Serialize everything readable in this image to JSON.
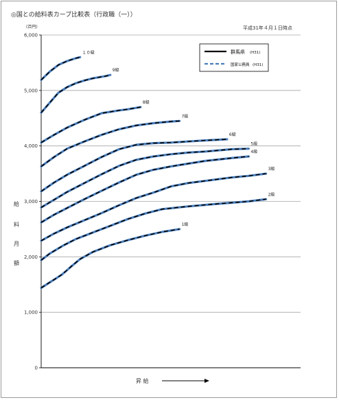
{
  "chart_data": {
    "type": "line",
    "title": "◎国との給料表カーブ比較表（行政職（一））",
    "as_of": "平成31年４月１日時点",
    "unit": "(百円)",
    "ylabel": [
      "給",
      "料",
      "月",
      "額"
    ],
    "xlabel": "昇 給",
    "ylim": [
      0,
      6000
    ],
    "yticks": [
      0,
      1000,
      2000,
      3000,
      4000,
      5000,
      6000
    ],
    "ytick_labels": [
      "0",
      "1,000",
      "2,000",
      "3,000",
      "4,000",
      "5,000",
      "6,000"
    ],
    "grid": "horizontal",
    "legend": {
      "position": "top-right",
      "entries": [
        {
          "name": "群馬県",
          "sub": "(H31)",
          "color": "#000000",
          "style": "solid"
        },
        {
          "name": "国家公務員",
          "sub": "(H31)",
          "color": "#4a7ebb",
          "style": "dashed"
        }
      ]
    },
    "series": [
      {
        "grade": "1級",
        "label": "1級",
        "points": [
          [
            0,
            1440
          ],
          [
            8,
            1520
          ],
          [
            16,
            1600
          ],
          [
            24,
            1680
          ],
          [
            30,
            1760
          ],
          [
            35,
            1830
          ],
          [
            45,
            1960
          ],
          [
            60,
            2090
          ],
          [
            80,
            2210
          ],
          [
            100,
            2300
          ],
          [
            120,
            2380
          ],
          [
            140,
            2450
          ],
          [
            160,
            2500
          ]
        ]
      },
      {
        "grade": "2級",
        "label": "2級",
        "points": [
          [
            0,
            1940
          ],
          [
            10,
            2060
          ],
          [
            25,
            2200
          ],
          [
            40,
            2320
          ],
          [
            60,
            2440
          ],
          [
            80,
            2560
          ],
          [
            100,
            2680
          ],
          [
            120,
            2780
          ],
          [
            140,
            2860
          ],
          [
            170,
            2910
          ],
          [
            200,
            2950
          ],
          [
            240,
            3000
          ],
          [
            260,
            3040
          ]
        ]
      },
      {
        "grade": "3級",
        "label": "3級",
        "points": [
          [
            0,
            2290
          ],
          [
            15,
            2420
          ],
          [
            30,
            2530
          ],
          [
            50,
            2660
          ],
          [
            70,
            2790
          ],
          [
            90,
            2930
          ],
          [
            110,
            3060
          ],
          [
            130,
            3160
          ],
          [
            150,
            3270
          ],
          [
            170,
            3330
          ],
          [
            190,
            3370
          ],
          [
            220,
            3430
          ],
          [
            240,
            3460
          ],
          [
            260,
            3500
          ]
        ]
      },
      {
        "grade": "4級",
        "label": "4級",
        "points": [
          [
            0,
            2620
          ],
          [
            15,
            2760
          ],
          [
            30,
            2880
          ],
          [
            50,
            3040
          ],
          [
            70,
            3190
          ],
          [
            90,
            3340
          ],
          [
            110,
            3480
          ],
          [
            130,
            3570
          ],
          [
            150,
            3630
          ],
          [
            170,
            3680
          ],
          [
            190,
            3730
          ],
          [
            220,
            3780
          ],
          [
            240,
            3810
          ]
        ]
      },
      {
        "grade": "5級",
        "label": "5級",
        "points": [
          [
            0,
            2890
          ],
          [
            15,
            3030
          ],
          [
            30,
            3170
          ],
          [
            50,
            3330
          ],
          [
            70,
            3490
          ],
          [
            90,
            3640
          ],
          [
            110,
            3750
          ],
          [
            130,
            3810
          ],
          [
            150,
            3850
          ],
          [
            170,
            3880
          ],
          [
            190,
            3900
          ],
          [
            220,
            3940
          ],
          [
            240,
            3950
          ]
        ]
      },
      {
        "grade": "6級",
        "label": "6級",
        "points": [
          [
            0,
            3180
          ],
          [
            15,
            3340
          ],
          [
            30,
            3480
          ],
          [
            50,
            3640
          ],
          [
            70,
            3800
          ],
          [
            90,
            3940
          ],
          [
            110,
            4020
          ],
          [
            130,
            4050
          ],
          [
            150,
            4060
          ],
          [
            170,
            4080
          ],
          [
            190,
            4100
          ],
          [
            215,
            4120
          ]
        ]
      },
      {
        "grade": "7級",
        "label": "7級",
        "points": [
          [
            0,
            3630
          ],
          [
            15,
            3800
          ],
          [
            30,
            3950
          ],
          [
            50,
            4080
          ],
          [
            70,
            4200
          ],
          [
            90,
            4300
          ],
          [
            110,
            4370
          ],
          [
            130,
            4410
          ],
          [
            150,
            4440
          ],
          [
            160,
            4450
          ]
        ]
      },
      {
        "grade": "8級",
        "label": "8級",
        "points": [
          [
            0,
            4060
          ],
          [
            15,
            4200
          ],
          [
            30,
            4330
          ],
          [
            50,
            4470
          ],
          [
            70,
            4590
          ],
          [
            90,
            4640
          ],
          [
            100,
            4660
          ],
          [
            115,
            4700
          ]
        ]
      },
      {
        "grade": "9級",
        "label": "9級",
        "points": [
          [
            0,
            4600
          ],
          [
            10,
            4780
          ],
          [
            20,
            4960
          ],
          [
            30,
            5060
          ],
          [
            40,
            5130
          ],
          [
            50,
            5180
          ],
          [
            60,
            5220
          ],
          [
            75,
            5260
          ],
          [
            80,
            5280
          ]
        ]
      },
      {
        "grade": "10級",
        "label": "１０級",
        "points": [
          [
            0,
            5190
          ],
          [
            10,
            5340
          ],
          [
            20,
            5460
          ],
          [
            30,
            5530
          ],
          [
            40,
            5580
          ],
          [
            45,
            5600
          ]
        ]
      }
    ]
  }
}
